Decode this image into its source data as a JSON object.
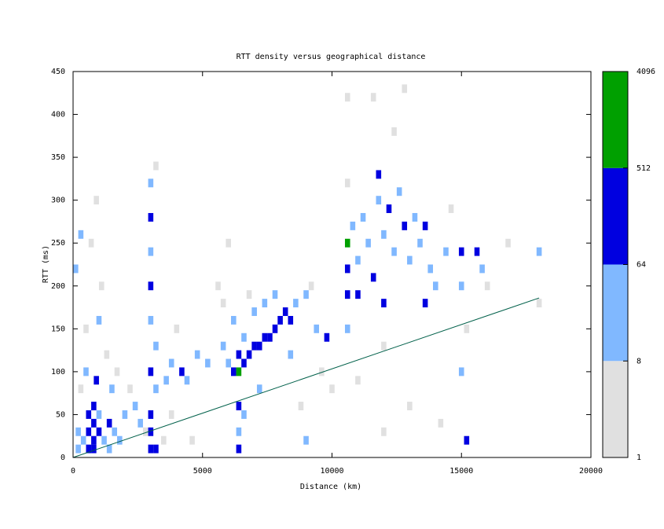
{
  "chart_data": {
    "type": "heatmap",
    "title": "RTT density versus geographical distance",
    "xlabel": "Distance (km)",
    "ylabel": "RTT (ms)",
    "xlim": [
      0,
      20000
    ],
    "xticks": [
      0,
      5000,
      10000,
      15000,
      20000
    ],
    "ylim": [
      0,
      450
    ],
    "yticks": [
      0,
      50,
      100,
      150,
      200,
      250,
      300,
      350,
      400,
      450
    ],
    "grid": false,
    "colorbar": {
      "lim": [
        1,
        4096
      ],
      "ticks": [
        1,
        8,
        64,
        512,
        4096
      ],
      "log": true,
      "colors": [
        "#e0e0e0",
        "#80b8ff",
        "#0000e0",
        "#00a000"
      ]
    },
    "cells": [
      [
        200,
        10,
        30
      ],
      [
        200,
        30,
        30
      ],
      [
        400,
        20,
        30
      ],
      [
        600,
        10,
        200
      ],
      [
        600,
        30,
        200
      ],
      [
        600,
        50,
        200
      ],
      [
        800,
        10,
        200
      ],
      [
        800,
        20,
        200
      ],
      [
        800,
        40,
        200
      ],
      [
        800,
        60,
        200
      ],
      [
        1000,
        30,
        200
      ],
      [
        1000,
        50,
        30
      ],
      [
        1200,
        20,
        30
      ],
      [
        1400,
        40,
        200
      ],
      [
        1400,
        10,
        30
      ],
      [
        1600,
        30,
        30
      ],
      [
        1800,
        20,
        30
      ],
      [
        2000,
        50,
        30
      ],
      [
        2400,
        60,
        30
      ],
      [
        2600,
        40,
        30
      ],
      [
        300,
        80,
        4
      ],
      [
        500,
        150,
        4
      ],
      [
        700,
        250,
        4
      ],
      [
        900,
        300,
        4
      ],
      [
        1100,
        200,
        4
      ],
      [
        1300,
        120,
        4
      ],
      [
        1700,
        100,
        4
      ],
      [
        2200,
        80,
        4
      ],
      [
        2800,
        30,
        4
      ],
      [
        3500,
        20,
        4
      ],
      [
        100,
        220,
        30
      ],
      [
        300,
        260,
        30
      ],
      [
        900,
        90,
        200
      ],
      [
        1000,
        160,
        30
      ],
      [
        500,
        100,
        30
      ],
      [
        1500,
        80,
        30
      ],
      [
        3000,
        10,
        200
      ],
      [
        3000,
        30,
        200
      ],
      [
        3000,
        50,
        200
      ],
      [
        3200,
        80,
        30
      ],
      [
        3000,
        100,
        200
      ],
      [
        3200,
        130,
        30
      ],
      [
        3000,
        160,
        30
      ],
      [
        3000,
        200,
        200
      ],
      [
        3000,
        240,
        30
      ],
      [
        3000,
        280,
        200
      ],
      [
        3000,
        320,
        30
      ],
      [
        3200,
        340,
        4
      ],
      [
        3200,
        10,
        200
      ],
      [
        3600,
        90,
        30
      ],
      [
        3800,
        110,
        30
      ],
      [
        4200,
        100,
        200
      ],
      [
        4400,
        90,
        30
      ],
      [
        4800,
        120,
        30
      ],
      [
        5200,
        110,
        30
      ],
      [
        4000,
        150,
        4
      ],
      [
        3800,
        50,
        4
      ],
      [
        4600,
        20,
        4
      ],
      [
        5800,
        130,
        30
      ],
      [
        5800,
        180,
        4
      ],
      [
        6000,
        110,
        30
      ],
      [
        6200,
        100,
        200
      ],
      [
        6400,
        100,
        1000
      ],
      [
        6400,
        120,
        200
      ],
      [
        6600,
        110,
        200
      ],
      [
        6800,
        120,
        200
      ],
      [
        6600,
        140,
        30
      ],
      [
        7000,
        130,
        200
      ],
      [
        7200,
        130,
        200
      ],
      [
        7400,
        140,
        200
      ],
      [
        7600,
        140,
        200
      ],
      [
        7800,
        150,
        200
      ],
      [
        8000,
        160,
        200
      ],
      [
        8200,
        170,
        200
      ],
      [
        8400,
        160,
        200
      ],
      [
        7000,
        170,
        30
      ],
      [
        7400,
        180,
        30
      ],
      [
        7800,
        190,
        30
      ],
      [
        8600,
        180,
        30
      ],
      [
        9000,
        190,
        30
      ],
      [
        9200,
        200,
        4
      ],
      [
        6200,
        160,
        30
      ],
      [
        6800,
        190,
        4
      ],
      [
        5600,
        200,
        4
      ],
      [
        6000,
        250,
        4
      ],
      [
        6400,
        60,
        200
      ],
      [
        6400,
        30,
        30
      ],
      [
        6600,
        50,
        30
      ],
      [
        6400,
        10,
        200
      ],
      [
        7200,
        80,
        30
      ],
      [
        9000,
        20,
        30
      ],
      [
        8400,
        120,
        30
      ],
      [
        9400,
        150,
        30
      ],
      [
        9800,
        140,
        200
      ],
      [
        9600,
        100,
        4
      ],
      [
        8800,
        60,
        4
      ],
      [
        10000,
        80,
        4
      ],
      [
        10600,
        250,
        1000
      ],
      [
        10600,
        220,
        200
      ],
      [
        10600,
        190,
        200
      ],
      [
        10600,
        150,
        30
      ],
      [
        10600,
        320,
        4
      ],
      [
        10800,
        270,
        30
      ],
      [
        11000,
        230,
        30
      ],
      [
        11000,
        190,
        200
      ],
      [
        11200,
        280,
        30
      ],
      [
        11400,
        250,
        30
      ],
      [
        11600,
        210,
        200
      ],
      [
        11800,
        300,
        30
      ],
      [
        11800,
        330,
        200
      ],
      [
        12000,
        260,
        30
      ],
      [
        12200,
        290,
        200
      ],
      [
        12400,
        240,
        30
      ],
      [
        12600,
        310,
        30
      ],
      [
        12800,
        270,
        200
      ],
      [
        13000,
        230,
        30
      ],
      [
        13200,
        280,
        30
      ],
      [
        13400,
        250,
        30
      ],
      [
        13600,
        270,
        200
      ],
      [
        13800,
        220,
        30
      ],
      [
        14000,
        200,
        30
      ],
      [
        14400,
        240,
        30
      ],
      [
        14600,
        290,
        4
      ],
      [
        15000,
        240,
        200
      ],
      [
        15000,
        200,
        30
      ],
      [
        15000,
        100,
        30
      ],
      [
        15200,
        20,
        200
      ],
      [
        15200,
        150,
        4
      ],
      [
        15600,
        240,
        200
      ],
      [
        15800,
        220,
        30
      ],
      [
        16000,
        200,
        4
      ],
      [
        16800,
        250,
        4
      ],
      [
        18000,
        240,
        30
      ],
      [
        18000,
        180,
        4
      ],
      [
        12000,
        180,
        200
      ],
      [
        12400,
        380,
        4
      ],
      [
        11600,
        420,
        4
      ],
      [
        12800,
        430,
        4
      ],
      [
        10600,
        420,
        4
      ],
      [
        13600,
        180,
        200
      ],
      [
        12000,
        130,
        4
      ],
      [
        11000,
        90,
        4
      ],
      [
        13000,
        60,
        4
      ],
      [
        14200,
        40,
        4
      ],
      [
        12000,
        30,
        4
      ]
    ],
    "line": {
      "color": "#00604a",
      "x": [
        0,
        18000
      ],
      "values": [
        0,
        186
      ]
    }
  }
}
